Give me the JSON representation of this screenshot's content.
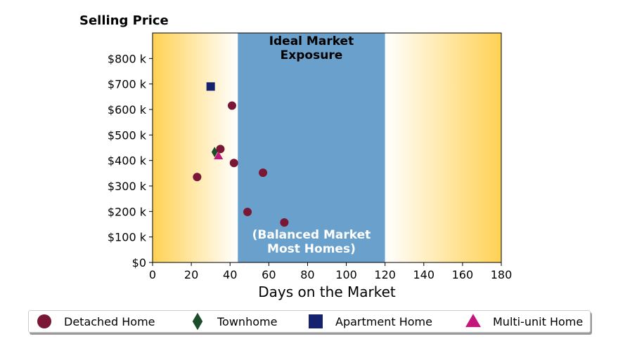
{
  "chart_data": {
    "type": "scatter",
    "title": "Selling Price",
    "xlabel": "Days on the Market",
    "ylabel": "",
    "xlim": [
      0,
      180
    ],
    "ylim": [
      0,
      900000
    ],
    "x_ticks": [
      0,
      20,
      40,
      60,
      80,
      100,
      120,
      140,
      160,
      180
    ],
    "x_tick_labels": [
      "0",
      "20",
      "40",
      "60",
      "80",
      "100",
      "120",
      "140",
      "160",
      "180"
    ],
    "y_ticks": [
      0,
      100000,
      200000,
      300000,
      400000,
      500000,
      600000,
      700000,
      800000
    ],
    "y_tick_labels": [
      "$0",
      "$100 k",
      "$200 k",
      "$300 k",
      "$400 k",
      "$500 k",
      "$600 k",
      "$700 k",
      "$800 k"
    ],
    "grid": false,
    "legend_position": "bottom",
    "bands": [
      {
        "kind": "gradient-left",
        "from": 0,
        "to": 44,
        "color": "#ffd154"
      },
      {
        "kind": "solid",
        "from": 44,
        "to": 120,
        "color": "#6aa1cc"
      },
      {
        "kind": "gradient-right",
        "from": 120,
        "to": 180,
        "color": "#ffd154"
      }
    ],
    "annotations": [
      {
        "lines": [
          "Ideal Market",
          "Exposure"
        ],
        "color": "#000000",
        "position": "top"
      },
      {
        "lines": [
          "(Balanced Market",
          "Most Homes)"
        ],
        "color": "#ffffff",
        "position": "bottom"
      }
    ],
    "series": [
      {
        "name": "Detached Home",
        "marker": "circle",
        "color": "#7a1636",
        "points": [
          [
            23,
            335000
          ],
          [
            35,
            445000
          ],
          [
            41,
            615000
          ],
          [
            42,
            390000
          ],
          [
            49,
            198000
          ],
          [
            57,
            352000
          ],
          [
            68,
            157000
          ]
        ]
      },
      {
        "name": "Townhome",
        "marker": "diamond",
        "color": "#1a4d2a",
        "points": [
          [
            32,
            433000
          ]
        ]
      },
      {
        "name": "Apartment Home",
        "marker": "square",
        "color": "#142270",
        "points": [
          [
            30,
            690000
          ]
        ]
      },
      {
        "name": "Multi-unit Home",
        "marker": "triangle",
        "color": "#c2187c",
        "points": [
          [
            34,
            418000
          ]
        ]
      }
    ]
  }
}
